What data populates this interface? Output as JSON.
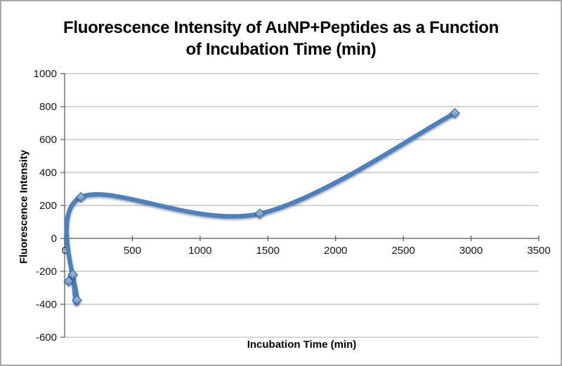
{
  "header": {
    "title_line1": "Fluorescence Intensity of AuNP+Peptides as a Function",
    "title_line2": "of Incubation Time (min)"
  },
  "chart_data": {
    "type": "scatter",
    "line_style": "smooth",
    "title": "Fluorescence Intensity of AuNP+Peptides as a Function of Incubation Time (min)",
    "xlabel": "Incubation Time (min)",
    "ylabel": "Fluorescence Intensity",
    "x": [
      30,
      60,
      90,
      120,
      1440,
      2880
    ],
    "y": [
      -260,
      -220,
      -375,
      250,
      150,
      760
    ],
    "xlim": [
      0,
      3500
    ],
    "ylim": [
      -600,
      1000
    ],
    "xticks": [
      0,
      500,
      1000,
      1500,
      2000,
      2500,
      3000,
      3500
    ],
    "yticks": [
      -600,
      -400,
      -200,
      0,
      200,
      400,
      600,
      800,
      1000
    ],
    "grid": "horizontal-only",
    "legend": "none",
    "marker": "diamond",
    "colors": {
      "line": "#4E81BD",
      "marker_fill_top": "#A9C4E4",
      "marker_fill_bottom": "#5C8BC6",
      "marker_border": "#3E6DA3",
      "gridline": "#A9A9A9",
      "axis": "#555555",
      "text": "#000000",
      "chart_border": "#A8A8A8",
      "background": "#FFFFFF"
    }
  }
}
